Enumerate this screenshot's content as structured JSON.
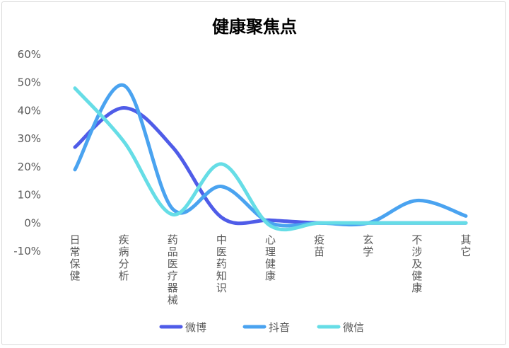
{
  "chart_data": {
    "type": "line",
    "smooth": true,
    "title": "健康聚焦点",
    "xlabel": "",
    "ylabel": "",
    "categories": [
      "日常保健",
      "疾病分析",
      "药品医疗器械",
      "中医药知识",
      "心理健康",
      "疫苗",
      "玄学",
      "不涉及健康",
      "其它"
    ],
    "y_ticks": [
      "60%",
      "50%",
      "40%",
      "30%",
      "20%",
      "10%",
      "0%",
      "-10%"
    ],
    "ylim": [
      -10,
      60
    ],
    "grid": false,
    "legend_position": "bottom",
    "series": [
      {
        "name": "微博",
        "color": "#4f5ce8",
        "values": [
          27,
          41,
          27,
          2,
          1,
          0,
          0,
          0,
          0
        ]
      },
      {
        "name": "抖音",
        "color": "#4aa3f0",
        "values": [
          19,
          49,
          5,
          13,
          0,
          0,
          0,
          8,
          2.5
        ]
      },
      {
        "name": "微信",
        "color": "#66dde6",
        "values": [
          48,
          29,
          3,
          21,
          -1,
          0,
          0,
          0,
          0
        ]
      }
    ]
  }
}
